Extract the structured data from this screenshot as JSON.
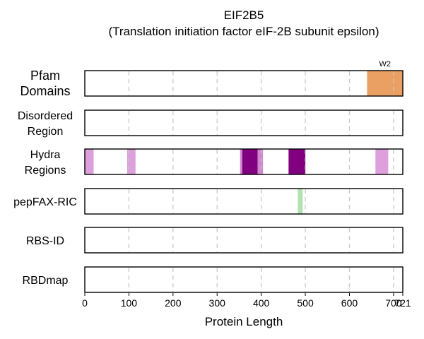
{
  "chart_data": {
    "type": "track",
    "title_line1": "EIF2B5",
    "title_line2": "(Translation initiation factor eIF-2B subunit epsilon)",
    "xlabel": "Protein Length",
    "protein_length": 721,
    "xlim": [
      0,
      721
    ],
    "xticks": [
      0,
      100,
      200,
      300,
      400,
      500,
      600,
      700,
      721
    ],
    "grid": true,
    "tracks": [
      {
        "name": "Pfam Domains",
        "label_lines": [
          "Pfam",
          "Domains"
        ],
        "segments": [
          {
            "start": 640,
            "end": 721,
            "color": "#eba063",
            "label": "W2"
          }
        ]
      },
      {
        "name": "Disordered Region",
        "label_lines": [
          "Disordered",
          "Region"
        ],
        "segments": []
      },
      {
        "name": "Hydra Regions",
        "label_lines": [
          "Hydra",
          "Regions"
        ],
        "segments": [
          {
            "start": 0,
            "end": 20,
            "color": "#dda0dd"
          },
          {
            "start": 96,
            "end": 115,
            "color": "#dda0dd"
          },
          {
            "start": 352,
            "end": 357,
            "color": "#cf88cf"
          },
          {
            "start": 357,
            "end": 392,
            "color": "#800080"
          },
          {
            "start": 392,
            "end": 404,
            "color": "#cf88cf"
          },
          {
            "start": 462,
            "end": 500,
            "color": "#800080"
          },
          {
            "start": 659,
            "end": 688,
            "color": "#dda0dd"
          }
        ]
      },
      {
        "name": "pepFAX-RIC",
        "label_lines": [
          "pepFAX-RIC"
        ],
        "segments": [
          {
            "start": 483,
            "end": 494,
            "color": "#b1e3b1"
          }
        ]
      },
      {
        "name": "RBS-ID",
        "label_lines": [
          "RBS-ID"
        ],
        "segments": []
      },
      {
        "name": "RBDmap",
        "label_lines": [
          "RBDmap"
        ],
        "segments": []
      }
    ]
  }
}
